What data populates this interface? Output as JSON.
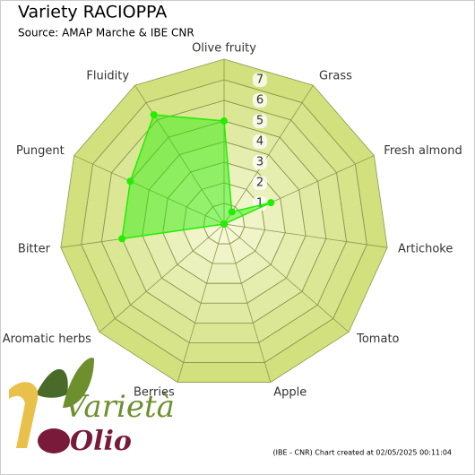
{
  "chart_data": {
    "type": "radar",
    "title": "Variety RACIOPPA",
    "subtitle": "Source: AMAP Marche & IBE CNR",
    "categories": [
      "Olive fruity",
      "Grass",
      "Fresh almond",
      "Artichoke",
      "Tomato",
      "Apple",
      "Berries",
      "Aromatic herbs",
      "Bitter",
      "Pungent",
      "Fluidity"
    ],
    "series": [
      {
        "color": "#22ee00",
        "values": [
          5,
          0.7,
          2.5,
          0,
          0,
          0,
          0,
          0,
          5,
          5,
          6.3
        ]
      }
    ],
    "ylim": [
      0,
      8
    ],
    "yticks": [
      1,
      2,
      3,
      4,
      5,
      6,
      7
    ],
    "grid": true,
    "footer": "(IBE - CNR) Chart created at 02/05/2025 00:11:04",
    "logo": {
      "word1": "Varietà",
      "word2": "Olio"
    }
  }
}
